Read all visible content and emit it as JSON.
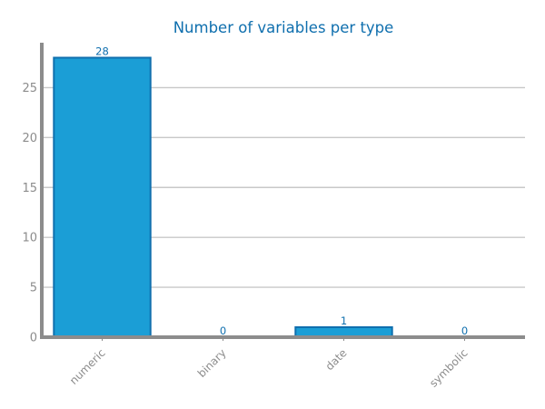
{
  "chart_data": {
    "type": "bar",
    "title": "Number of variables per type",
    "xlabel": "",
    "ylabel": "",
    "categories": [
      "numeric",
      "binary",
      "date",
      "symbolic"
    ],
    "values": [
      28,
      0,
      1,
      0
    ],
    "data_labels": [
      "28",
      "0",
      "1",
      "0"
    ],
    "yticks": [
      0,
      5,
      10,
      15,
      20,
      25
    ],
    "ylim": [
      0,
      29.5
    ],
    "grid": "horizontal",
    "legend": "none",
    "colors": {
      "bar_fill": "#1b9ed6",
      "bar_edge": "#0f6fae",
      "grid": "#c8c8c8",
      "axis": "#8c8c8c",
      "title": "#0f6fae",
      "tick_text": "#8c8c8c",
      "data_label": "#0f6fae"
    }
  }
}
